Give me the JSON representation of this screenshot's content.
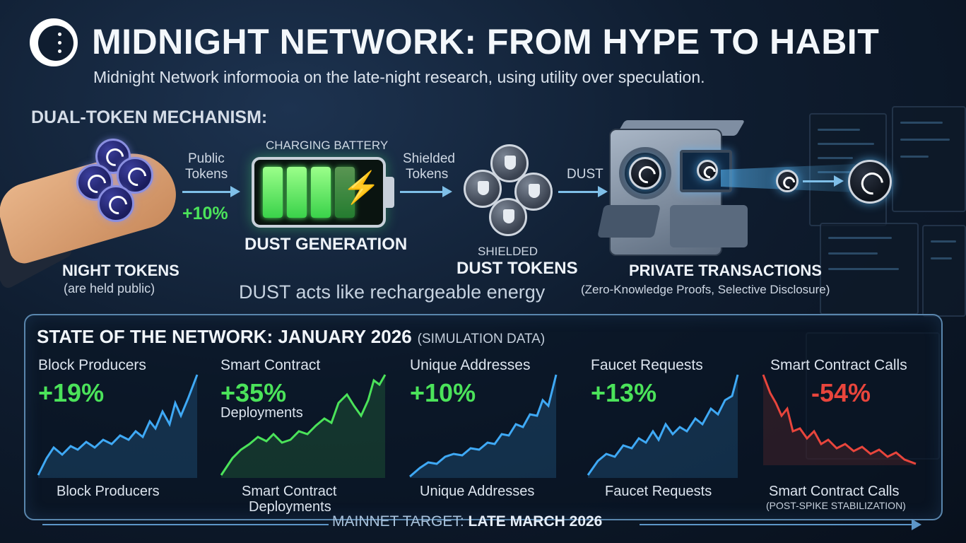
{
  "header": {
    "title": "MIDNIGHT NETWORK: FROM HYPE TO HABIT",
    "subtitle": "Midnight Network informooia on the late-night research, using utility over speculation."
  },
  "dual_token": {
    "heading": "DUAL-TOKEN MECHANISM:",
    "night_tokens": {
      "label": "NIGHT TOKENS",
      "note": "(are held public)"
    },
    "arrow1": {
      "line1": "Public",
      "line2": "Tokens",
      "percent": "+10%"
    },
    "battery": {
      "caption": "CHARGING BATTERY",
      "label": "DUST GENERATION"
    },
    "arrow2": {
      "line1": "Shielded",
      "line2": "Tokens"
    },
    "dust_tokens": {
      "top": "SHIELDED",
      "label": "DUST TOKENS"
    },
    "arrow3": {
      "label": "DUST"
    },
    "private_tx": {
      "label": "PRIVATE TRANSACTIONS",
      "note": "(Zero-Knowledge Proofs, Selective Disclosure)"
    },
    "energy_caption": "DUST acts like rechargeable energy"
  },
  "network_state": {
    "heading": "STATE OF THE NETWORK: JANUARY 2026",
    "heading_note": "(SIMULATION DATA)",
    "metrics": [
      {
        "title": "Block Producers",
        "change": "+19%",
        "sub": "",
        "footer_line1": "Block Producers",
        "footer_line2": "",
        "color": "#3fa9f5"
      },
      {
        "title": "Smart Contract",
        "change": "+35%",
        "sub": "Deployments",
        "footer_line1": "Smart Contract",
        "footer_line2": "Deployments",
        "color": "#4be35a"
      },
      {
        "title": "Unique Addresses",
        "change": "+10%",
        "sub": "",
        "footer_line1": "Unique Addresses",
        "footer_line2": "",
        "color": "#3fa9f5"
      },
      {
        "title": "Faucet Requests",
        "change": "+13%",
        "sub": "",
        "footer_line1": "Faucet Requests",
        "footer_line2": "",
        "color": "#3fa9f5"
      },
      {
        "title": "Smart Contract Calls",
        "change": "-54%",
        "sub": "",
        "footer_line1": "Smart Contract Calls",
        "footer_line2": "(POST-SPIKE STABILIZATION)",
        "color": "#e8453c"
      }
    ],
    "positive_color": "#4be35a",
    "negative_color": "#e8453c"
  },
  "footer": {
    "mainnet_prefix": "MAINNET TARGET:",
    "mainnet_value": "LATE MARCH 2026"
  }
}
